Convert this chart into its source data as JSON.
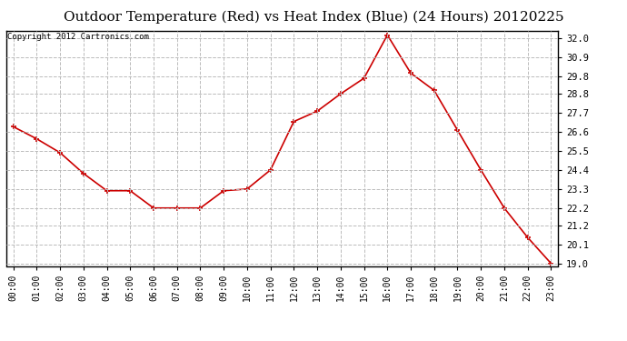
{
  "title": "Outdoor Temperature (Red) vs Heat Index (Blue) (24 Hours) 20120225",
  "copyright": "Copyright 2012 Cartronics.com",
  "x_labels": [
    "00:00",
    "01:00",
    "02:00",
    "03:00",
    "04:00",
    "05:00",
    "06:00",
    "07:00",
    "08:00",
    "09:00",
    "10:00",
    "11:00",
    "12:00",
    "13:00",
    "14:00",
    "15:00",
    "16:00",
    "17:00",
    "18:00",
    "19:00",
    "20:00",
    "21:00",
    "22:00",
    "23:00"
  ],
  "temp_red": [
    26.9,
    26.2,
    25.4,
    24.2,
    23.2,
    23.2,
    22.2,
    22.2,
    22.2,
    23.2,
    23.3,
    24.4,
    27.2,
    27.8,
    28.8,
    29.7,
    32.2,
    30.0,
    29.0,
    26.7,
    24.4,
    22.2,
    20.5,
    19.0
  ],
  "ylim_min": 18.85,
  "ylim_max": 32.45,
  "yticks": [
    19.0,
    20.1,
    21.2,
    22.2,
    23.3,
    24.4,
    25.5,
    26.6,
    27.7,
    28.8,
    29.8,
    30.9,
    32.0
  ],
  "background_color": "#ffffff",
  "grid_color": "#bbbbbb",
  "line_color_red": "#cc0000",
  "title_fontsize": 11,
  "copyright_fontsize": 6.5,
  "tick_fontsize": 7,
  "ytick_fontsize": 7.5
}
